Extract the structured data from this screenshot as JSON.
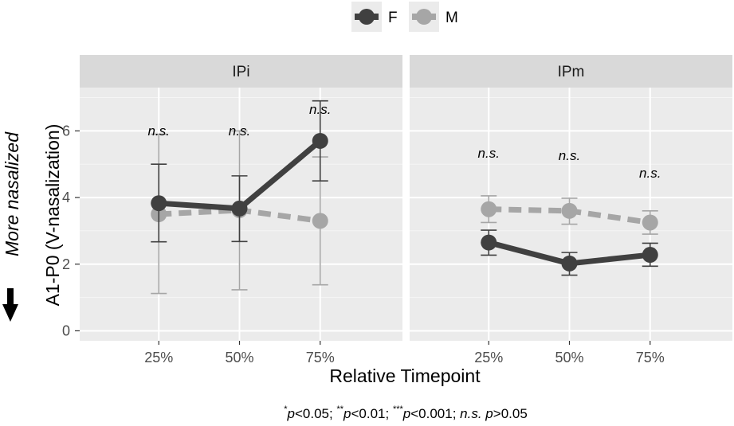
{
  "chart_data": {
    "type": "line",
    "legend": {
      "placement": "top",
      "entries": [
        {
          "label": "F",
          "color": "#404040"
        },
        {
          "label": "M",
          "color": "#a6a6a6"
        }
      ]
    },
    "xlabel": "Relative Timepoint",
    "ylabel": "A1-P0 (V-nasalization)",
    "ylabel_annotation": "More nasalized",
    "ylim": [
      -0.3,
      7.3
    ],
    "yticks": [
      "0",
      "2",
      "4",
      "6"
    ],
    "categories": [
      "25%",
      "50%",
      "75%"
    ],
    "grid": true,
    "footnote": {
      "p1": "p",
      "t1": "<0.05; ",
      "p2": "p",
      "t2": "<0.01; ",
      "p3": "p",
      "t3": "<0.001; ",
      "ns": "n.s. p",
      "t4": ">0.05",
      "star1": "*",
      "star2": "**",
      "star3": "***"
    },
    "panels": [
      {
        "name": "IPi",
        "significance": [
          "n.s.",
          "n.s.",
          "n.s."
        ],
        "series": [
          {
            "name": "F",
            "color": "#404040",
            "dashed": false,
            "values": [
              3.83,
              3.67,
              5.7
            ],
            "lower": [
              2.67,
              2.68,
              4.5
            ],
            "upper": [
              5.0,
              4.65,
              6.9
            ]
          },
          {
            "name": "M",
            "color": "#a6a6a6",
            "dashed": true,
            "values": [
              3.5,
              3.62,
              3.3
            ],
            "lower": [
              1.12,
              1.23,
              1.38
            ],
            "upper": [
              5.9,
              6.0,
              5.22
            ]
          }
        ]
      },
      {
        "name": "IPm",
        "significance": [
          "n.s.",
          "n.s.",
          "n.s."
        ],
        "series": [
          {
            "name": "F",
            "color": "#404040",
            "dashed": false,
            "values": [
              2.65,
              2.02,
              2.28
            ],
            "lower": [
              2.27,
              1.67,
              1.94
            ],
            "upper": [
              3.02,
              2.35,
              2.63
            ]
          },
          {
            "name": "M",
            "color": "#a6a6a6",
            "dashed": true,
            "values": [
              3.65,
              3.6,
              3.25
            ],
            "lower": [
              3.25,
              3.2,
              2.9
            ],
            "upper": [
              4.05,
              3.98,
              3.6
            ]
          }
        ]
      }
    ]
  }
}
